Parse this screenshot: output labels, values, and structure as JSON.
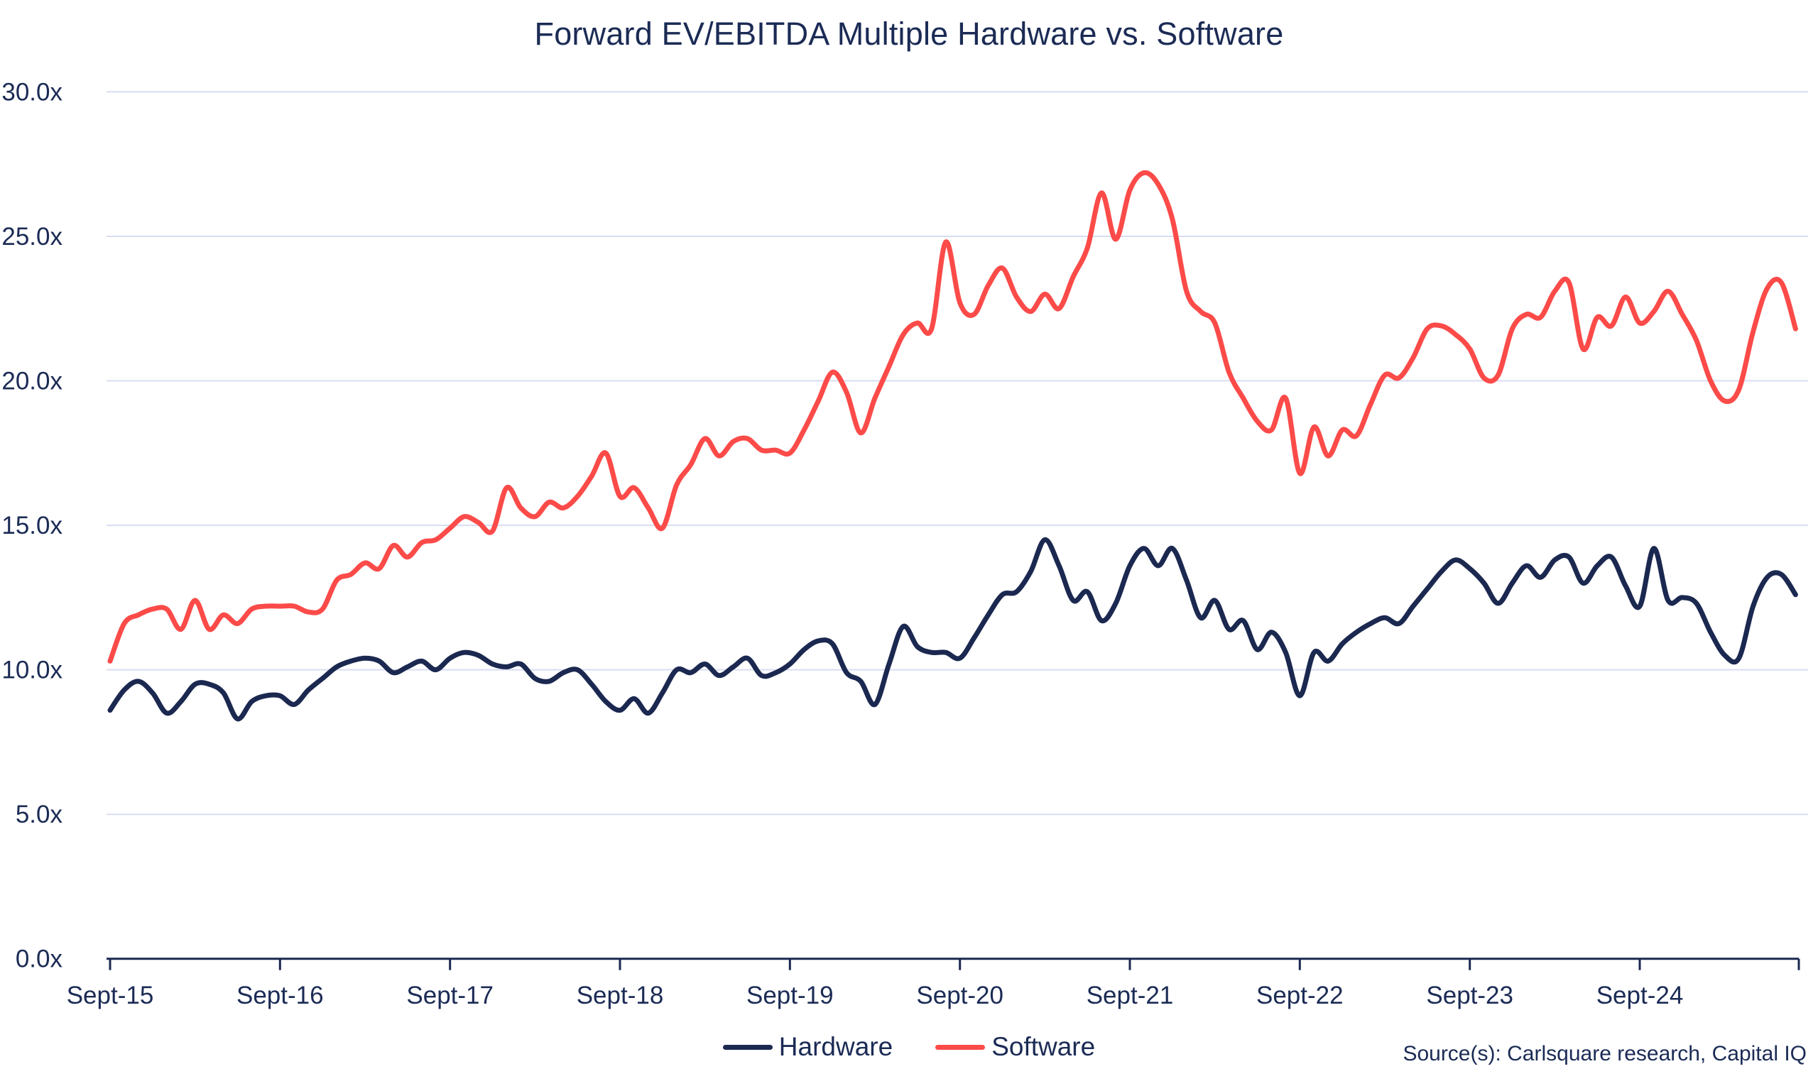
{
  "page": {
    "background": "#ffffff"
  },
  "style": {
    "grid_color": "#D8DDF0",
    "axis_color": "#1B2850",
    "text_color": "#1B2B55",
    "line_width": 7
  },
  "chart_data": {
    "type": "line",
    "title": "Forward EV/EBITDA Multiple Hardware vs. Software",
    "source_note": "Source(s): Carlsquare research, Capital IQ",
    "x_start_month": "2015-09",
    "x_points_monthly": 120,
    "x_tick_labels": [
      "Sept-15",
      "Sept-16",
      "Sept-17",
      "Sept-18",
      "Sept-19",
      "Sept-20",
      "Sept-21",
      "Sept-22",
      "Sept-23",
      "Sept-24"
    ],
    "y_tick_labels": [
      "0.0x",
      "5.0x",
      "10.0x",
      "15.0x",
      "20.0x",
      "25.0x",
      "30.0x"
    ],
    "y_tick_values": [
      0,
      5,
      10,
      15,
      20,
      25,
      30
    ],
    "ylim": [
      0,
      30
    ],
    "grid": "horizontal",
    "legend_position": "bottom-center",
    "series": [
      {
        "name": "Hardware",
        "color": "#1B2850",
        "values": [
          8.6,
          9.3,
          9.6,
          9.2,
          8.5,
          8.9,
          9.5,
          9.5,
          9.2,
          8.3,
          8.9,
          9.1,
          9.1,
          8.8,
          9.3,
          9.7,
          10.1,
          10.3,
          10.4,
          10.3,
          9.9,
          10.1,
          10.3,
          10.0,
          10.4,
          10.6,
          10.5,
          10.2,
          10.1,
          10.2,
          9.7,
          9.6,
          9.9,
          10.0,
          9.5,
          8.9,
          8.6,
          9.0,
          8.5,
          9.2,
          10.0,
          9.9,
          10.2,
          9.8,
          10.1,
          10.4,
          9.8,
          9.9,
          10.2,
          10.7,
          11.0,
          10.9,
          9.9,
          9.6,
          8.8,
          10.2,
          11.5,
          10.8,
          10.6,
          10.6,
          10.4,
          11.1,
          11.9,
          12.6,
          12.7,
          13.4,
          14.5,
          13.6,
          12.4,
          12.7,
          11.7,
          12.3,
          13.6,
          14.2,
          13.6,
          14.2,
          13.1,
          11.8,
          12.4,
          11.4,
          11.7,
          10.7,
          11.3,
          10.6,
          9.1,
          10.6,
          10.3,
          10.9,
          11.3,
          11.6,
          11.8,
          11.6,
          12.2,
          12.8,
          13.4,
          13.8,
          13.5,
          13.0,
          12.3,
          13.0,
          13.6,
          13.2,
          13.8,
          13.9,
          13.0,
          13.6,
          13.9,
          12.9,
          12.2,
          14.2,
          12.4,
          12.5,
          12.3,
          11.3,
          10.5,
          10.4,
          12.2,
          13.2,
          13.3,
          12.6
        ]
      },
      {
        "name": "Software",
        "color": "#FB4B49",
        "values": [
          10.3,
          11.6,
          11.9,
          12.1,
          12.1,
          11.4,
          12.4,
          11.4,
          11.9,
          11.6,
          12.1,
          12.2,
          12.2,
          12.2,
          12.0,
          12.1,
          13.1,
          13.3,
          13.7,
          13.5,
          14.3,
          13.9,
          14.4,
          14.5,
          14.9,
          15.3,
          15.1,
          14.8,
          16.3,
          15.6,
          15.3,
          15.8,
          15.6,
          16.0,
          16.7,
          17.5,
          16.0,
          16.3,
          15.6,
          14.9,
          16.4,
          17.1,
          18.0,
          17.4,
          17.9,
          18.0,
          17.6,
          17.6,
          17.5,
          18.3,
          19.3,
          20.3,
          19.6,
          18.2,
          19.4,
          20.5,
          21.6,
          22.0,
          21.8,
          24.8,
          22.7,
          22.3,
          23.3,
          23.9,
          22.9,
          22.4,
          23.0,
          22.5,
          23.6,
          24.6,
          26.5,
          24.9,
          26.6,
          27.2,
          26.8,
          25.6,
          23.1,
          22.4,
          22.0,
          20.3,
          19.4,
          18.6,
          18.3,
          19.4,
          16.8,
          18.4,
          17.4,
          18.3,
          18.1,
          19.2,
          20.2,
          20.1,
          20.8,
          21.8,
          21.9,
          21.6,
          21.1,
          20.1,
          20.2,
          21.8,
          22.3,
          22.2,
          23.1,
          23.4,
          21.1,
          22.2,
          21.9,
          22.9,
          22.0,
          22.4,
          23.1,
          22.3,
          21.4,
          20.0,
          19.3,
          19.7,
          21.7,
          23.2,
          23.4,
          21.8
        ]
      }
    ]
  }
}
